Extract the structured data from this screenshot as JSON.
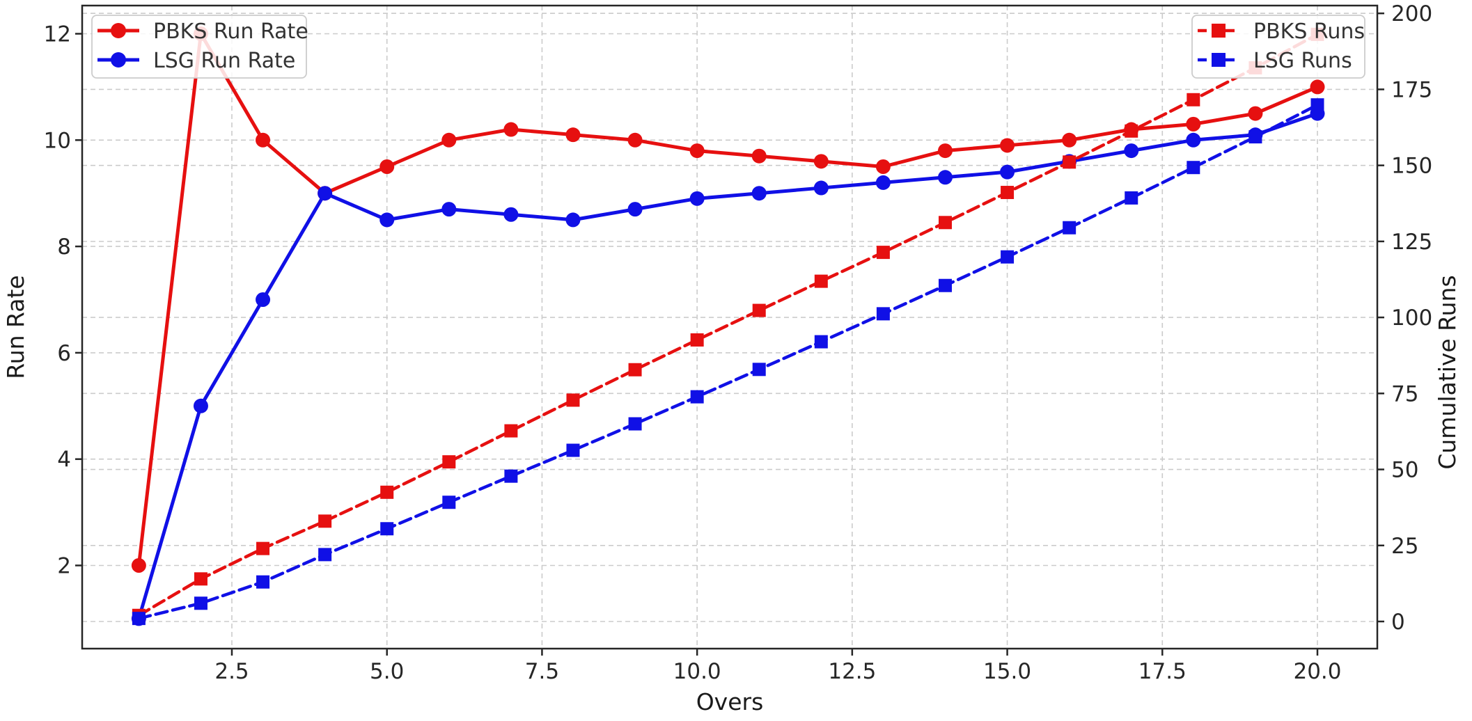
{
  "chart_data": {
    "type": "line",
    "title": "",
    "xlabel": "Overs",
    "ylabel_left": "Run Rate",
    "ylabel_right": "Cumulative Runs",
    "grid": true,
    "x": [
      1,
      2,
      3,
      4,
      5,
      6,
      7,
      8,
      9,
      10,
      11,
      12,
      13,
      14,
      15,
      16,
      17,
      18,
      19,
      20
    ],
    "x_ticks": [
      2.5,
      5.0,
      7.5,
      10.0,
      12.5,
      15.0,
      17.5,
      20.0
    ],
    "x_tick_labels": [
      "2.5",
      "5.0",
      "7.5",
      "10.0",
      "12.5",
      "15.0",
      "17.5",
      "20.0"
    ],
    "y_left_ticks": [
      2,
      4,
      6,
      8,
      10,
      12
    ],
    "y_left_tick_labels": [
      "2",
      "4",
      "6",
      "8",
      "10",
      "12"
    ],
    "y_left_range": [
      0.4,
      12.6
    ],
    "y_right_ticks": [
      0,
      25,
      50,
      75,
      100,
      125,
      150,
      175,
      200
    ],
    "y_right_tick_labels": [
      "0",
      "25",
      "50",
      "75",
      "100",
      "125",
      "150",
      "175",
      "200"
    ],
    "y_right_range": [
      -9,
      211
    ],
    "legend_left_title": "",
    "legend_right_title": "",
    "series": [
      {
        "name": "PBKS Run Rate",
        "axis": "left",
        "style": "solid",
        "marker": "circle",
        "color": "#e61010",
        "values": [
          2.0,
          12.0,
          10.0,
          9.0,
          9.5,
          10.0,
          10.2,
          10.1,
          10.0,
          9.8,
          9.7,
          9.6,
          9.5,
          9.8,
          9.9,
          10.0,
          10.2,
          10.3,
          10.5,
          11.0
        ]
      },
      {
        "name": "LSG Run Rate",
        "axis": "left",
        "style": "solid",
        "marker": "circle",
        "color": "#1010e6",
        "values": [
          1.0,
          5.0,
          7.0,
          9.0,
          8.5,
          8.7,
          8.6,
          8.5,
          8.7,
          8.9,
          9.0,
          9.1,
          9.2,
          9.3,
          9.4,
          9.6,
          9.8,
          10.0,
          10.1,
          10.5
        ]
      },
      {
        "name": "PBKS Runs",
        "axis": "right",
        "style": "dashed",
        "marker": "square",
        "color": "#e61010",
        "values": [
          2.0,
          14.0,
          24.0,
          33.0,
          42.5,
          52.5,
          62.7,
          72.8,
          82.8,
          92.6,
          102.3,
          111.9,
          121.4,
          131.2,
          141.1,
          151.1,
          161.3,
          171.6,
          182.1,
          193.1
        ]
      },
      {
        "name": "LSG Runs",
        "axis": "right",
        "style": "dashed",
        "marker": "square",
        "color": "#1010e6",
        "values": [
          1.0,
          6.0,
          13.0,
          22.0,
          30.5,
          39.2,
          47.8,
          56.3,
          65.0,
          73.9,
          82.9,
          92.0,
          101.2,
          110.5,
          119.9,
          129.5,
          139.3,
          149.3,
          159.4,
          169.9
        ]
      }
    ],
    "legend_left": [
      "PBKS Run Rate",
      "LSG Run Rate"
    ],
    "legend_right": [
      "PBKS Runs",
      "LSG Runs"
    ]
  },
  "colors": {
    "pbks": "#e61010",
    "lsg": "#1010e6",
    "grid": "#cbcbcb",
    "spine": "#262626",
    "text": "#262626",
    "legend_border": "#cccccc",
    "background": "#ffffff"
  }
}
